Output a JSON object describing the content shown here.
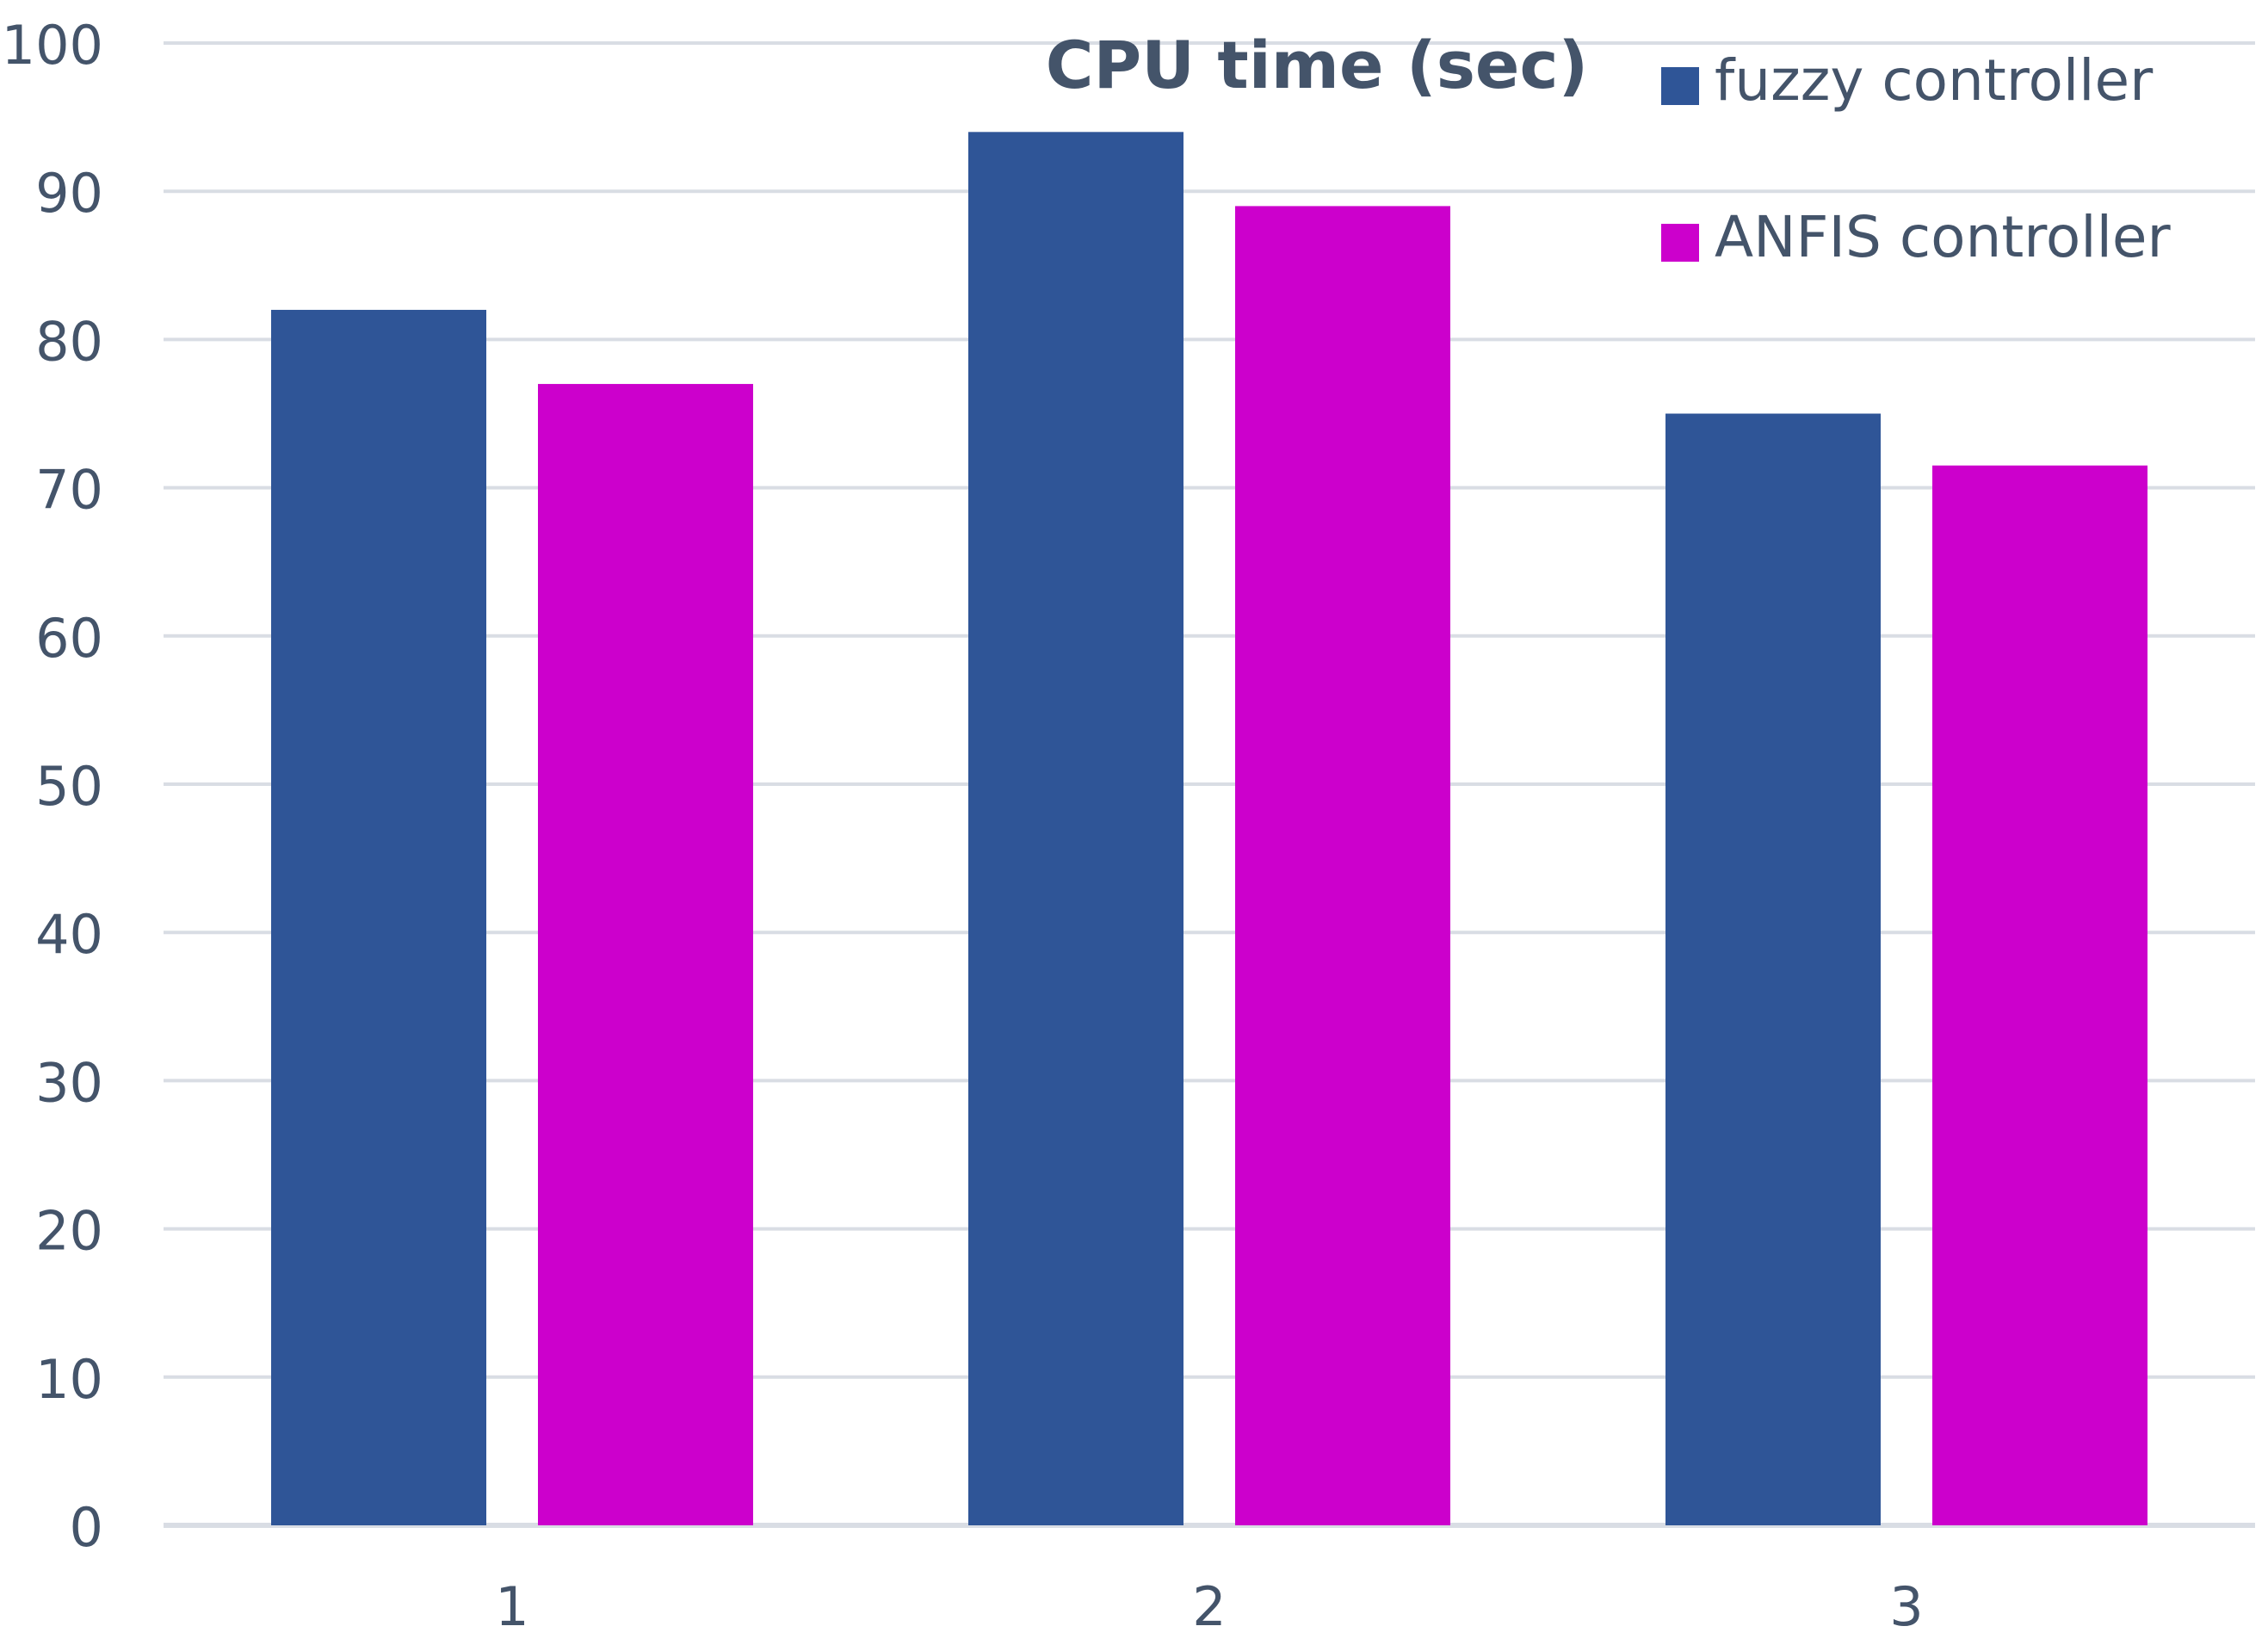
{
  "chart_data": {
    "type": "bar",
    "title": "CPU time (sec)",
    "xlabel": "",
    "ylabel": "",
    "categories": [
      "1",
      "2",
      "3"
    ],
    "series": [
      {
        "name": "fuzzy controller",
        "values": [
          82,
          94,
          75
        ],
        "color": "#2F5597"
      },
      {
        "name": "ANFIS controller",
        "values": [
          77,
          89,
          71.5
        ],
        "color": "#CC00CC"
      }
    ],
    "ylim": [
      0,
      100
    ],
    "yticks": [
      "0",
      "10",
      "20",
      "30",
      "40",
      "50",
      "60",
      "70",
      "80",
      "90",
      "100"
    ],
    "grid": true,
    "legend_position": "top-right",
    "colors": {
      "gridline": "#D9DDE4",
      "text": "#44546A"
    }
  }
}
